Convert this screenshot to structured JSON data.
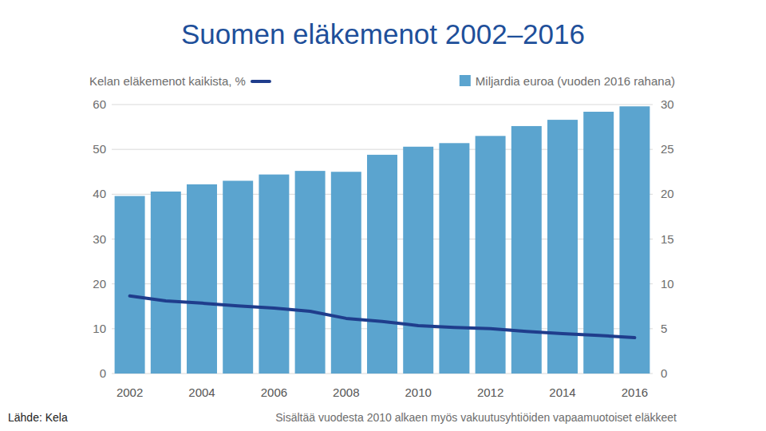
{
  "chart_data": {
    "type": "bar",
    "title": "Suomen eläkemenot 2002–2016",
    "source": "Lähde: Kela",
    "note": "Sisältää vuodesta 2010 alkaen myös vakuutusyhtiöiden vapaamuotoiset eläkkeet",
    "categories": [
      "2002",
      null,
      "2004",
      null,
      "2006",
      null,
      "2008",
      null,
      "2010",
      null,
      "2012",
      null,
      "2014",
      null,
      "2016"
    ],
    "series": [
      {
        "name": "Miljardia euroa (vuoden 2016 rahana)",
        "type": "bar",
        "axis": "y2",
        "color": "#5ba4cf",
        "values": [
          19.8,
          20.3,
          21.1,
          21.5,
          22.2,
          22.6,
          22.5,
          24.4,
          25.3,
          25.7,
          26.5,
          27.6,
          28.3,
          29.2,
          29.8
        ]
      },
      {
        "name": "Kelan eläkemenot kaikista, %",
        "type": "line",
        "color": "#1f3d8c",
        "values": [
          17.3,
          16.2,
          15.7,
          15.1,
          14.6,
          13.9,
          12.3,
          11.6,
          10.7,
          10.3,
          10.0,
          9.4,
          8.9,
          8.5,
          8.0
        ]
      }
    ],
    "ylim": [
      0,
      60
    ],
    "yticks": [
      0,
      10,
      20,
      30,
      40,
      50,
      60
    ],
    "y2lim": [
      0,
      30
    ],
    "y2ticks": [
      0,
      5,
      10,
      15,
      20,
      25,
      30
    ],
    "grid": true
  }
}
